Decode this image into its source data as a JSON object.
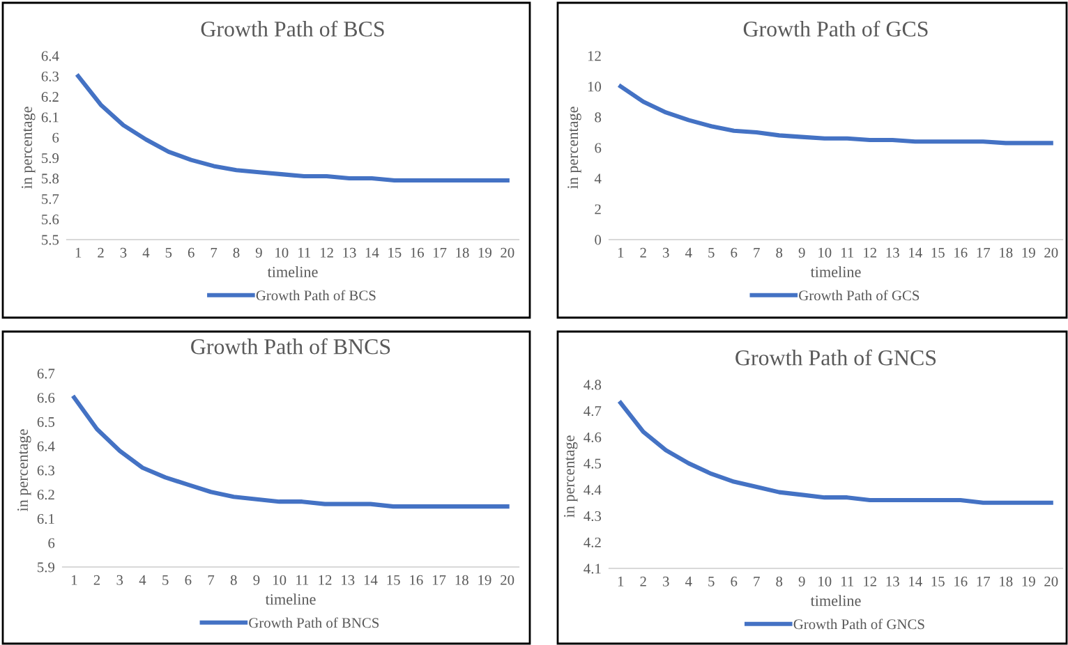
{
  "chart_data": [
    {
      "type": "line",
      "title": "Growth Path of BCS",
      "xlabel": "timeline",
      "ylabel": "in percentage",
      "legend": "bottom",
      "categories": [
        "1",
        "2",
        "3",
        "4",
        "5",
        "6",
        "7",
        "8",
        "9",
        "10",
        "11",
        "12",
        "13",
        "14",
        "15",
        "16",
        "17",
        "18",
        "19",
        "20"
      ],
      "series": [
        {
          "name": "Growth Path of BCS",
          "color": "#4472c4",
          "values": [
            6.3,
            6.16,
            6.06,
            5.99,
            5.93,
            5.89,
            5.86,
            5.84,
            5.83,
            5.82,
            5.81,
            5.81,
            5.8,
            5.8,
            5.79,
            5.79,
            5.79,
            5.79,
            5.79,
            5.79
          ]
        }
      ],
      "ylim": [
        5.5,
        6.4
      ],
      "yticks": [
        5.5,
        5.6,
        5.7,
        5.8,
        5.9,
        {
          "value": 6,
          "label": "6"
        },
        6.1,
        6.2,
        6.3,
        6.4
      ]
    },
    {
      "type": "line",
      "title": "Growth Path of GCS",
      "xlabel": "timeline",
      "ylabel": "in percentage",
      "legend": "bottom",
      "categories": [
        "1",
        "2",
        "3",
        "4",
        "5",
        "6",
        "7",
        "8",
        "9",
        "10",
        "11",
        "12",
        "13",
        "14",
        "15",
        "16",
        "17",
        "18",
        "19",
        "20"
      ],
      "series": [
        {
          "name": "Growth Path of GCS",
          "color": "#4472c4",
          "values": [
            10.0,
            9.0,
            8.3,
            7.8,
            7.4,
            7.1,
            7.0,
            6.8,
            6.7,
            6.6,
            6.6,
            6.5,
            6.5,
            6.4,
            6.4,
            6.4,
            6.4,
            6.3,
            6.3,
            6.3
          ]
        }
      ],
      "ylim": [
        0,
        12
      ],
      "yticks": [
        0,
        2,
        4,
        6,
        8,
        10,
        12
      ]
    },
    {
      "type": "line",
      "title": "Growth Path of BNCS",
      "xlabel": "timeline",
      "ylabel": "in percentage",
      "legend": "bottom",
      "categories": [
        "1",
        "2",
        "3",
        "4",
        "5",
        "6",
        "7",
        "8",
        "9",
        "10",
        "11",
        "12",
        "13",
        "14",
        "15",
        "16",
        "17",
        "18",
        "19",
        "20"
      ],
      "series": [
        {
          "name": "Growth Path of BNCS",
          "color": "#4472c4",
          "values": [
            6.6,
            6.47,
            6.38,
            6.31,
            6.27,
            6.24,
            6.21,
            6.19,
            6.18,
            6.17,
            6.17,
            6.16,
            6.16,
            6.16,
            6.15,
            6.15,
            6.15,
            6.15,
            6.15,
            6.15
          ]
        }
      ],
      "ylim": [
        5.9,
        6.7
      ],
      "yticks": [
        5.9,
        {
          "value": 6,
          "label": "6"
        },
        6.1,
        6.2,
        6.3,
        6.4,
        6.5,
        6.6,
        6.7
      ]
    },
    {
      "type": "line",
      "title": "Growth Path of GNCS",
      "xlabel": "timeline",
      "ylabel": "in percentage",
      "legend": "bottom",
      "categories": [
        "1",
        "2",
        "3",
        "4",
        "5",
        "6",
        "7",
        "8",
        "9",
        "10",
        "11",
        "12",
        "13",
        "14",
        "15",
        "16",
        "17",
        "18",
        "19",
        "20"
      ],
      "series": [
        {
          "name": "Growth Path of GNCS",
          "color": "#4472c4",
          "values": [
            4.73,
            4.62,
            4.55,
            4.5,
            4.46,
            4.43,
            4.41,
            4.39,
            4.38,
            4.37,
            4.37,
            4.36,
            4.36,
            4.36,
            4.36,
            4.36,
            4.35,
            4.35,
            4.35,
            4.35
          ]
        }
      ],
      "ylim": [
        4.1,
        4.8
      ],
      "yticks": [
        4.1,
        4.2,
        4.3,
        4.4,
        4.5,
        4.6,
        4.7,
        4.8
      ]
    }
  ]
}
